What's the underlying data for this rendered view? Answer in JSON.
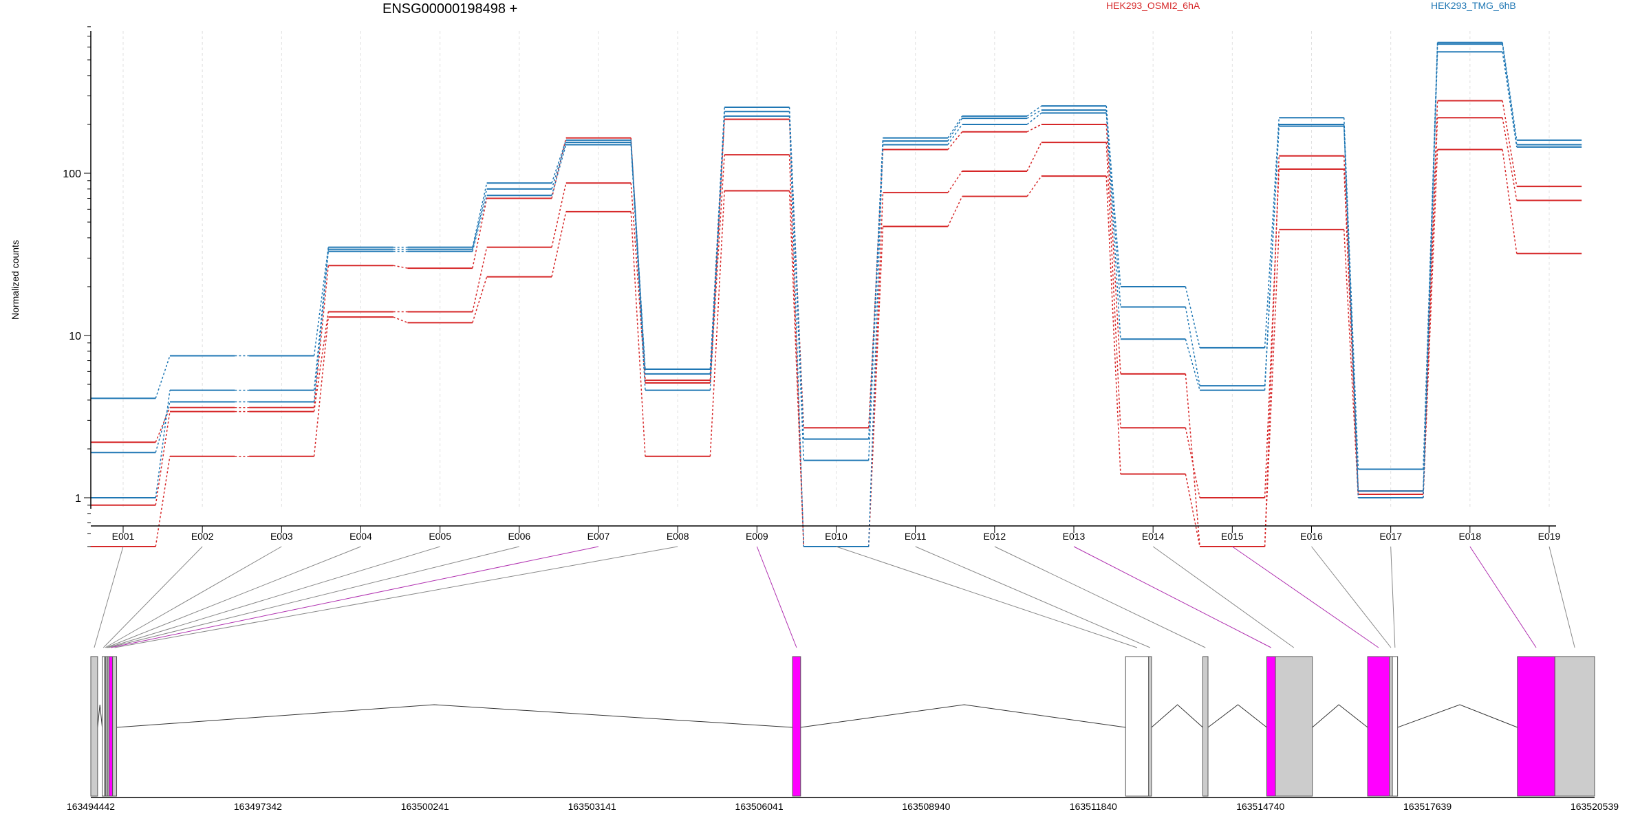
{
  "title": "ENSG00000198498 +",
  "legend": [
    {
      "name": "HEK293_OSMI2_6hA",
      "color": "#d62728"
    },
    {
      "name": "HEK293_TMG_6hB",
      "color": "#1f77b4"
    }
  ],
  "colors": {
    "exon_highlight": "#ff00ff",
    "exon_grey": "#cccccc",
    "axis": "#000000",
    "grid": "#e0e0e0"
  },
  "chart_data": [
    {
      "type": "line",
      "scale": "log",
      "title": "ENSG00000198498 +",
      "ylabel": "Normalized counts",
      "ylim": [
        0.5,
        850
      ],
      "yticks": [
        1,
        10,
        100
      ],
      "ytick_labels": [
        "1",
        "10",
        "100"
      ],
      "categories": [
        "E001",
        "E002",
        "E003",
        "E004",
        "E005",
        "E006",
        "E007",
        "E008",
        "E009",
        "E010",
        "E011",
        "E012",
        "E013",
        "E014",
        "E015",
        "E016",
        "E017",
        "E018",
        "E019"
      ],
      "legend_position": "top",
      "series": [
        {
          "name": "HEK293_OSMI2_6hA",
          "group": "OSMI2",
          "values": [
            2.2,
            3.6,
            3.6,
            27,
            26,
            70,
            165,
            5.3,
            215,
            2.7,
            140,
            180,
            200,
            5.8,
            0.5,
            128,
            1.1,
            280,
            83
          ]
        },
        {
          "name": "",
          "group": "OSMI2",
          "values": [
            0.9,
            3.4,
            3.4,
            14,
            14,
            35,
            87,
            5.1,
            130,
            0.5,
            76,
            103,
            155,
            2.7,
            1.0,
            106,
            1.05,
            220,
            68
          ]
        },
        {
          "name": "",
          "group": "OSMI2",
          "values": [
            0.5,
            1.8,
            1.8,
            13,
            12,
            23,
            58,
            1.8,
            78,
            0.5,
            47,
            72,
            96,
            1.4,
            0.5,
            45,
            1.0,
            140,
            32
          ]
        },
        {
          "name": "HEK293_TMG_6hB",
          "group": "TMG",
          "values": [
            4.1,
            7.5,
            7.5,
            35,
            35,
            87,
            160,
            6.2,
            255,
            2.3,
            165,
            225,
            260,
            20,
            8.4,
            220,
            1.5,
            640,
            160
          ]
        },
        {
          "name": "",
          "group": "TMG",
          "values": [
            1.0,
            4.6,
            4.6,
            34,
            34,
            80,
            155,
            5.8,
            240,
            1.7,
            158,
            218,
            245,
            15,
            4.9,
            200,
            1.1,
            625,
            150
          ]
        },
        {
          "name": "",
          "group": "TMG",
          "values": [
            1.9,
            3.9,
            3.9,
            33,
            33,
            73,
            150,
            4.6,
            225,
            0.5,
            150,
            200,
            235,
            9.5,
            4.6,
            195,
            1.0,
            560,
            145
          ]
        }
      ]
    },
    {
      "type": "gene_model",
      "xticks": [
        "163494442",
        "163497342",
        "163500241",
        "163503141",
        "163506041",
        "163508940",
        "163511840",
        "163514740",
        "163517639",
        "163520539"
      ],
      "xrange": [
        163494442,
        163520539
      ],
      "highlighted_exons": [
        "E007",
        "E009",
        "E013",
        "E015",
        "E018"
      ],
      "exons": [
        {
          "id": "E001",
          "start": 163494442,
          "end": 163494560,
          "color": "grey"
        },
        {
          "id": "E002",
          "start": 163494640,
          "end": 163494680,
          "color": "white"
        },
        {
          "id": "E003",
          "start": 163494680,
          "end": 163494700,
          "color": "grey"
        },
        {
          "id": "E004",
          "start": 163494700,
          "end": 163494720,
          "color": "white"
        },
        {
          "id": "E005",
          "start": 163494720,
          "end": 163494740,
          "color": "grey"
        },
        {
          "id": "E006",
          "start": 163494740,
          "end": 163494760,
          "color": "white"
        },
        {
          "id": "E007",
          "start": 163494760,
          "end": 163494820,
          "color": "magenta"
        },
        {
          "id": "E008",
          "start": 163494820,
          "end": 163494890,
          "color": "grey"
        },
        {
          "id": "E009",
          "start": 163506620,
          "end": 163506760,
          "color": "magenta"
        },
        {
          "id": "E010",
          "start": 163512400,
          "end": 163512800,
          "color": "white"
        },
        {
          "id": "E011",
          "start": 163512800,
          "end": 163512850,
          "color": "grey"
        },
        {
          "id": "E012",
          "start": 163513740,
          "end": 163513830,
          "color": "grey"
        },
        {
          "id": "E013",
          "start": 163514850,
          "end": 163515000,
          "color": "magenta"
        },
        {
          "id": "E014",
          "start": 163515000,
          "end": 163515640,
          "color": "grey"
        },
        {
          "id": "E015",
          "start": 163516600,
          "end": 163516980,
          "color": "magenta"
        },
        {
          "id": "E016",
          "start": 163516980,
          "end": 163517030,
          "color": "grey"
        },
        {
          "id": "E017",
          "start": 163517030,
          "end": 163517120,
          "color": "white"
        },
        {
          "id": "E018",
          "start": 163519200,
          "end": 163519850,
          "color": "magenta"
        },
        {
          "id": "E019",
          "start": 163519850,
          "end": 163520539,
          "color": "grey"
        }
      ],
      "introns": [
        {
          "from": 163494560,
          "to": 163494640,
          "peak": 163494600
        },
        {
          "from": 163494890,
          "to": 163506620,
          "peak": 163500400
        },
        {
          "from": 163506760,
          "to": 163512400,
          "peak": 163509600
        },
        {
          "from": 163512850,
          "to": 163513740,
          "peak": 163513300
        },
        {
          "from": 163513830,
          "to": 163514850,
          "peak": 163514350
        },
        {
          "from": 163515640,
          "to": 163516600,
          "peak": 163516100
        },
        {
          "from": 163517120,
          "to": 163519200,
          "peak": 163518200
        }
      ]
    }
  ]
}
